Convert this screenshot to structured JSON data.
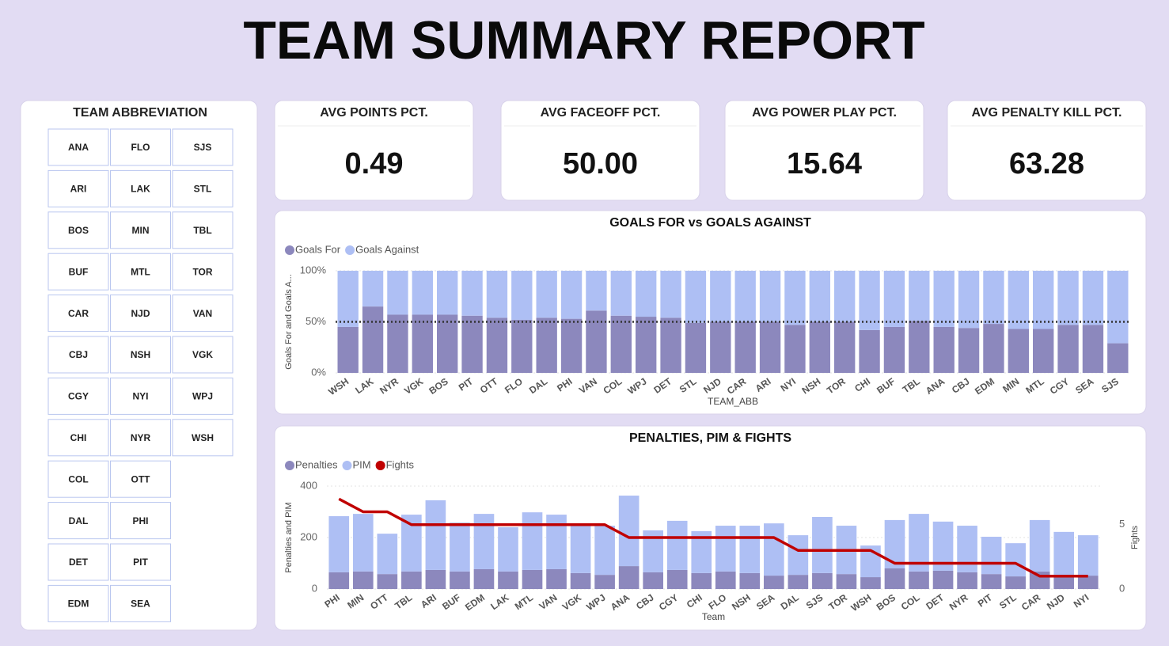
{
  "header": {
    "title": "TEAM SUMMARY REPORT"
  },
  "slicer": {
    "title": "TEAM ABBREVIATION",
    "items": [
      "ANA",
      "ARI",
      "BOS",
      "BUF",
      "CAR",
      "CBJ",
      "CGY",
      "CHI",
      "COL",
      "DAL",
      "DET",
      "EDM",
      "FLO",
      "LAK",
      "MIN",
      "MTL",
      "NJD",
      "NSH",
      "NYI",
      "NYR",
      "OTT",
      "PHI",
      "PIT",
      "SEA",
      "SJS",
      "STL",
      "TBL",
      "TOR",
      "VAN",
      "VGK",
      "WPJ",
      "WSH"
    ]
  },
  "kpis": [
    {
      "title": "AVG POINTS PCT.",
      "value": "0.49"
    },
    {
      "title": "AVG FACEOFF PCT.",
      "value": "50.00"
    },
    {
      "title": "AVG POWER PLAY PCT.",
      "value": "15.64"
    },
    {
      "title": "AVG PENALTY KILL PCT.",
      "value": "63.28"
    }
  ],
  "chart_data": [
    {
      "type": "bar",
      "stacked": true,
      "title": "GOALS FOR vs GOALS AGAINST",
      "x_label": "TEAM_ABB",
      "y_label": "Goals For and Goals A...",
      "categories": [
        "WSH",
        "LAK",
        "NYR",
        "VGK",
        "BOS",
        "PIT",
        "OTT",
        "FLO",
        "DAL",
        "PHI",
        "VAN",
        "COL",
        "WPJ",
        "DET",
        "STL",
        "NJD",
        "CAR",
        "ARI",
        "NYI",
        "NSH",
        "TOR",
        "CHI",
        "BUF",
        "TBL",
        "ANA",
        "CBJ",
        "EDM",
        "MIN",
        "MTL",
        "CGY",
        "SEA",
        "SJS"
      ],
      "series": [
        {
          "name": "Goals For",
          "color": "#8c88bd",
          "values": [
            45,
            65,
            57,
            57,
            57,
            56,
            54,
            52,
            54,
            53,
            61,
            56,
            55,
            54,
            49,
            50,
            50,
            50,
            47,
            50,
            50,
            42,
            45,
            51,
            45,
            44,
            48,
            43,
            43,
            47,
            47,
            29
          ]
        },
        {
          "name": "Goals Against",
          "color": "#aebff4",
          "values": [
            55,
            35,
            43,
            43,
            43,
            44,
            46,
            48,
            46,
            47,
            39,
            44,
            45,
            46,
            51,
            50,
            50,
            50,
            53,
            50,
            50,
            58,
            55,
            49,
            55,
            56,
            52,
            57,
            57,
            53,
            53,
            71
          ]
        }
      ],
      "reference_line": 50,
      "ylim": [
        0,
        100
      ],
      "yticks": [
        {
          "value": 0,
          "label": "0%"
        },
        {
          "value": 50,
          "label": "50%"
        },
        {
          "value": 100,
          "label": "100%"
        }
      ],
      "grid": true
    },
    {
      "type": "bar",
      "stacked": true,
      "title": "PENALTIES, PIM & FIGHTS",
      "x_label": "Team",
      "y_label": "Penalties and PIM",
      "y2_label": "Fights",
      "categories": [
        "PHI",
        "MIN",
        "OTT",
        "TBL",
        "ARI",
        "BUF",
        "EDM",
        "LAK",
        "MTL",
        "VAN",
        "VGK",
        "WPJ",
        "ANA",
        "CBJ",
        "CGY",
        "CHI",
        "FLO",
        "NSH",
        "SEA",
        "DAL",
        "SJS",
        "TOR",
        "WSH",
        "BOS",
        "COL",
        "DET",
        "NYR",
        "PIT",
        "STL",
        "CAR",
        "NJD",
        "NYI"
      ],
      "series": [
        {
          "name": "Penalties",
          "color": "#8c88bd",
          "values": [
            65,
            68,
            58,
            68,
            74,
            68,
            77,
            68,
            74,
            77,
            62,
            55,
            89,
            65,
            74,
            62,
            68,
            62,
            52,
            55,
            62,
            58,
            46,
            80,
            68,
            71,
            65,
            58,
            49,
            68,
            55,
            52
          ]
        },
        {
          "name": "PIM",
          "color": "#aebff4",
          "values": [
            218,
            224,
            157,
            221,
            271,
            190,
            215,
            172,
            224,
            212,
            190,
            191,
            274,
            163,
            191,
            163,
            178,
            184,
            203,
            154,
            218,
            188,
            123,
            188,
            224,
            191,
            181,
            145,
            129,
            200,
            167,
            157
          ]
        },
        {
          "name": "Fights",
          "color": "#c00000",
          "type": "line",
          "axis": "y2",
          "values": [
            7,
            6,
            6,
            5,
            5,
            5,
            5,
            5,
            5,
            5,
            5,
            5,
            4,
            4,
            4,
            4,
            4,
            4,
            4,
            3,
            3,
            3,
            3,
            2,
            2,
            2,
            2,
            2,
            2,
            1,
            1,
            1
          ]
        }
      ],
      "ylim": [
        0,
        400
      ],
      "yticks": [
        0,
        200,
        400
      ],
      "y2lim": [
        0,
        8
      ],
      "y2ticks": [
        0,
        5
      ],
      "grid": true
    }
  ]
}
